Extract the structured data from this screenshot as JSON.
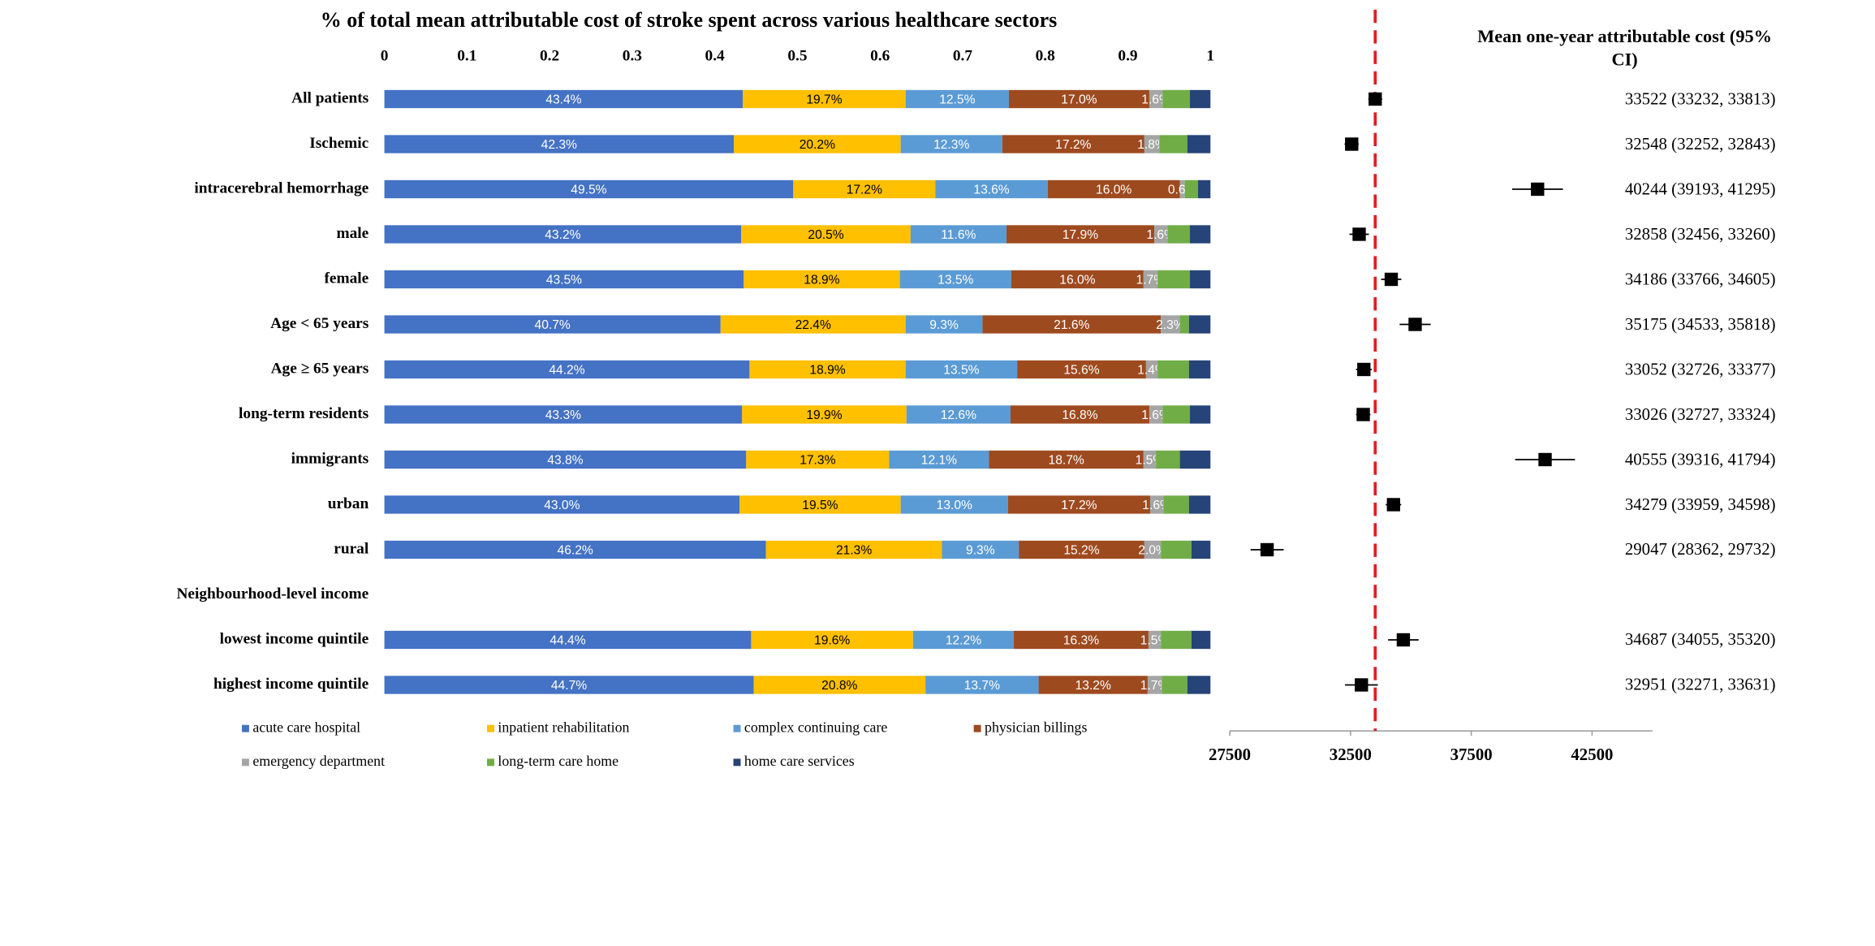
{
  "chart_data": [
    {
      "type": "stacked_bar_horizontal",
      "title": "% of total mean attributable cost of stroke spent across various healthcare sectors",
      "categories": [
        "All patients",
        "Ischemic",
        "intracerebral hemorrhage",
        "male",
        "female",
        "Age < 65 years",
        "Age ≥ 65 years",
        "long-term residents",
        "immigrants",
        "urban",
        "rural",
        "Neighbourhood-level income",
        "lowest income quintile",
        "highest income quintile"
      ],
      "xlim": [
        0,
        1
      ],
      "xticks": [
        0,
        0.1,
        0.2,
        0.3,
        0.4,
        0.5,
        0.6,
        0.7,
        0.8,
        0.9,
        1
      ],
      "series": [
        {
          "name": "acute care hospital",
          "color": "#4472c4",
          "label_color": "#ffffff",
          "values": [
            0.434,
            0.423,
            0.495,
            0.432,
            0.435,
            0.407,
            0.442,
            0.433,
            0.438,
            0.43,
            0.462,
            null,
            0.444,
            0.447
          ],
          "value_labels": [
            "43.4%",
            "42.3%",
            "49.5%",
            "43.2%",
            "43.5%",
            "40.7%",
            "44.2%",
            "43.3%",
            "43.8%",
            "43.0%",
            "46.2%",
            null,
            "44.4%",
            "44.7%"
          ]
        },
        {
          "name": "inpatient rehabilitation",
          "color": "#ffc000",
          "label_color": "#000000",
          "values": [
            0.197,
            0.202,
            0.172,
            0.205,
            0.189,
            0.224,
            0.189,
            0.199,
            0.173,
            0.195,
            0.213,
            null,
            0.196,
            0.208
          ],
          "value_labels": [
            "19.7%",
            "20.2%",
            "17.2%",
            "20.5%",
            "18.9%",
            "22.4%",
            "18.9%",
            "19.9%",
            "17.3%",
            "19.5%",
            "21.3%",
            null,
            "19.6%",
            "20.8%"
          ]
        },
        {
          "name": "complex continuing care",
          "color": "#5b9bd5",
          "label_color": "#ffffff",
          "values": [
            0.125,
            0.123,
            0.136,
            0.116,
            0.135,
            0.093,
            0.135,
            0.126,
            0.121,
            0.13,
            0.093,
            null,
            0.122,
            0.137
          ],
          "value_labels": [
            "12.5%",
            "12.3%",
            "13.6%",
            "11.6%",
            "13.5%",
            "9.3%",
            "13.5%",
            "12.6%",
            "12.1%",
            "13.0%",
            "9.3%",
            null,
            "12.2%",
            "13.7%"
          ]
        },
        {
          "name": "physician billings",
          "color": "#9e4a1f",
          "label_color": "#ffffff",
          "values": [
            0.17,
            0.172,
            0.16,
            0.179,
            0.16,
            0.216,
            0.156,
            0.168,
            0.187,
            0.172,
            0.152,
            null,
            0.163,
            0.132
          ],
          "value_labels": [
            "17.0%",
            "17.2%",
            "16.0%",
            "17.9%",
            "16.0%",
            "21.6%",
            "15.6%",
            "16.8%",
            "18.7%",
            "17.2%",
            "15.2%",
            null,
            "16.3%",
            "13.2%"
          ]
        },
        {
          "name": "emergency department",
          "color": "#a5a5a5",
          "label_color": "#ffffff",
          "values": [
            0.016,
            0.018,
            0.006,
            0.016,
            0.017,
            0.023,
            0.014,
            0.016,
            0.015,
            0.016,
            0.02,
            null,
            0.015,
            0.017
          ],
          "value_labels": [
            "1.6%",
            "1.8%",
            "0.6%",
            "1.6%",
            "1.7%",
            "2.3%",
            "1.4%",
            "1.6%",
            "1.5%",
            "1.6%",
            "2.0%",
            null,
            "1.5%",
            "1.7%"
          ]
        },
        {
          "name": "long-term care home",
          "color": "#70ad47",
          "values": [
            0.033,
            0.034,
            0.016,
            0.027,
            0.039,
            0.011,
            0.038,
            0.033,
            0.029,
            0.031,
            0.037,
            null,
            0.037,
            0.031
          ]
        },
        {
          "name": "home care services",
          "color": "#264478",
          "values": [
            0.025,
            0.028,
            0.015,
            0.025,
            0.025,
            0.026,
            0.026,
            0.025,
            0.037,
            0.026,
            0.023,
            null,
            0.023,
            0.028
          ]
        }
      ]
    },
    {
      "type": "forest",
      "title": "Mean one-year attributable cost (95% CI)",
      "values": [
        33522,
        32548,
        40244,
        32858,
        34186,
        35175,
        33052,
        33026,
        40555,
        34279,
        29047,
        null,
        34687,
        32951
      ],
      "ci_low": [
        33232,
        32252,
        39193,
        32456,
        33766,
        34533,
        32726,
        32727,
        39316,
        33959,
        28362,
        null,
        34055,
        32271
      ],
      "ci_high": [
        33813,
        32843,
        41295,
        33260,
        34605,
        35818,
        33377,
        33324,
        41794,
        34598,
        29732,
        null,
        35320,
        33631
      ],
      "value_labels": [
        "33522 (33232, 33813)",
        "32548 (32252, 32843)",
        "40244 (39193, 41295)",
        "32858 (32456, 33260)",
        "34186 (33766, 34605)",
        "35175 (34533, 35818)",
        "33052 (32726, 33377)",
        "33026 (32727, 33324)",
        "40555 (39316, 41794)",
        "34279 (33959, 34598)",
        "29047 (28362, 29732)",
        null,
        "34687 (34055, 35320)",
        "32951 (32271, 33631)"
      ],
      "reference_line": 33522,
      "reference_color": "#e02020",
      "color": "#000000",
      "xlim": [
        27500,
        45000
      ],
      "xticks": [
        27500,
        32500,
        37500,
        42500
      ]
    }
  ]
}
